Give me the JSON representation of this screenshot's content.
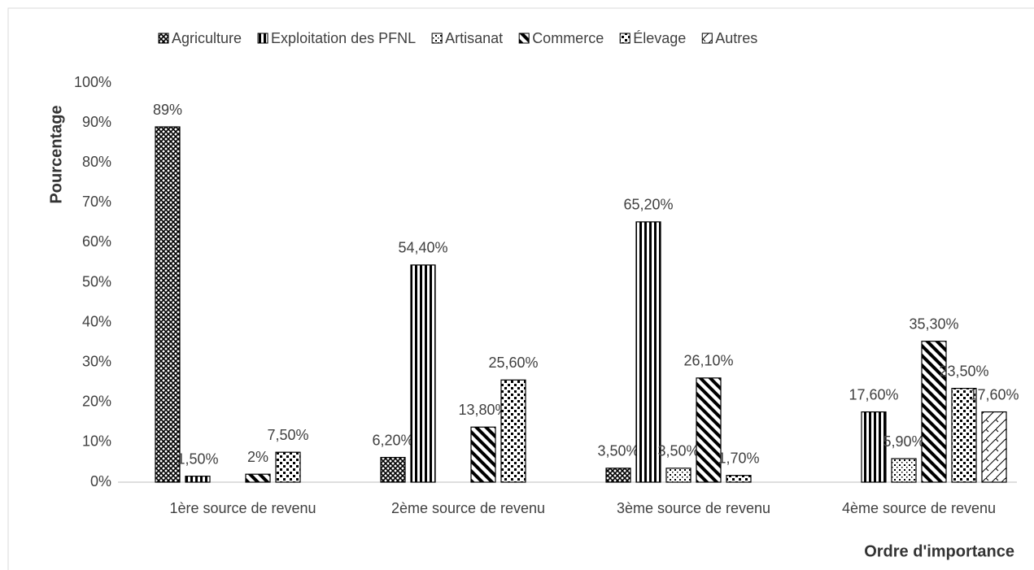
{
  "chart_data": {
    "type": "bar",
    "categories": [
      "1ère source de revenu",
      "2ème source de revenu",
      "3ème source de revenu",
      "4ème source de revenu"
    ],
    "series": [
      {
        "name": "Agriculture",
        "color": "#000000",
        "pattern": "crosshatch",
        "values": [
          89,
          6.2,
          3.5,
          null
        ],
        "value_labels": [
          "89%",
          "6,20%",
          "3,50%",
          null
        ]
      },
      {
        "name": "Exploitation des PFNL",
        "color": "#000000",
        "pattern": "vertical",
        "values": [
          1.5,
          54.4,
          65.2,
          17.6
        ],
        "value_labels": [
          "1,50%",
          "54,40%",
          "65,20%",
          "17,60%"
        ]
      },
      {
        "name": "Artisanat",
        "color": "#000000",
        "pattern": "dots",
        "values": [
          null,
          null,
          3.5,
          5.9
        ],
        "value_labels": [
          null,
          null,
          "3,50%",
          "5,90%"
        ]
      },
      {
        "name": "Commerce",
        "color": "#000000",
        "pattern": "diagonal",
        "values": [
          2,
          13.8,
          26.1,
          35.3
        ],
        "value_labels": [
          "2%",
          "13,80%",
          "26,10%",
          "35,30%"
        ]
      },
      {
        "name": "Élevage",
        "color": "#000000",
        "pattern": "checker",
        "values": [
          7.5,
          25.6,
          1.7,
          23.5
        ],
        "value_labels": [
          "7,50%",
          "25,60%",
          "1,70%",
          "23,50%"
        ]
      },
      {
        "name": "Autres",
        "color": "#000000",
        "pattern": "zigzag",
        "values": [
          null,
          null,
          null,
          17.6
        ],
        "value_labels": [
          null,
          null,
          null,
          "17,60%"
        ]
      }
    ],
    "xlabel": "Ordre d'importance",
    "ylabel": "Pourcentage",
    "ylim": [
      0,
      100
    ],
    "yticks": [
      {
        "value": 0,
        "label": "0%"
      },
      {
        "value": 10,
        "label": "10%"
      },
      {
        "value": 20,
        "label": "20%"
      },
      {
        "value": 30,
        "label": "30%"
      },
      {
        "value": 40,
        "label": "40%"
      },
      {
        "value": 50,
        "label": "50%"
      },
      {
        "value": 60,
        "label": "60%"
      },
      {
        "value": 70,
        "label": "70%"
      },
      {
        "value": 80,
        "label": "80%"
      },
      {
        "value": 90,
        "label": "90%"
      },
      {
        "value": 100,
        "label": "100%"
      }
    ],
    "grid": false,
    "legend": "top"
  }
}
